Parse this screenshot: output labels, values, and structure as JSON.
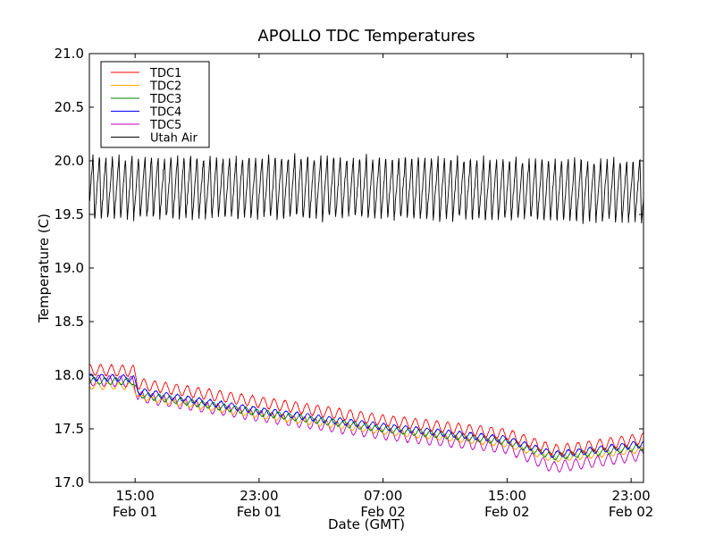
{
  "chart_data": {
    "type": "line",
    "title": "APOLLO TDC Temperatures",
    "xlabel": "Date (GMT)",
    "ylabel": "Temperature (C)",
    "xlim_hours_from_feb01_00": [
      12.05,
      47.8
    ],
    "ylim": [
      17.0,
      21.0
    ],
    "yticks": [
      17.0,
      17.5,
      18.0,
      18.5,
      19.0,
      19.5,
      20.0,
      20.5,
      21.0
    ],
    "ytick_labels": [
      "17.0",
      "17.5",
      "18.0",
      "18.5",
      "19.0",
      "19.5",
      "20.0",
      "20.5",
      "21.0"
    ],
    "xticks": [
      {
        "hours": 15,
        "time": "15:00",
        "date": "Feb 01"
      },
      {
        "hours": 23,
        "time": "23:00",
        "date": "Feb 01"
      },
      {
        "hours": 31,
        "time": "07:00",
        "date": "Feb 02"
      },
      {
        "hours": 39,
        "time": "15:00",
        "date": "Feb 02"
      },
      {
        "hours": 47,
        "time": "23:00",
        "date": "Feb 02"
      }
    ],
    "grid": false,
    "legend_position": "top-left",
    "series": [
      {
        "name": "TDC1",
        "color": "#ff0000",
        "trend": [
          [
            12.05,
            18.05
          ],
          [
            14.9,
            18.04
          ],
          [
            15.2,
            17.92
          ],
          [
            23,
            17.75
          ],
          [
            31,
            17.58
          ],
          [
            39,
            17.45
          ],
          [
            42,
            17.3
          ],
          [
            44,
            17.33
          ],
          [
            47.8,
            17.41
          ]
        ],
        "amplitude_C": 0.05,
        "period_hours": 0.7
      },
      {
        "name": "TDC2",
        "color": "#ffa500",
        "trend": [
          [
            12.05,
            17.9
          ],
          [
            14.9,
            17.9
          ],
          [
            15.2,
            17.8
          ],
          [
            23,
            17.63
          ],
          [
            31,
            17.48
          ],
          [
            39,
            17.36
          ],
          [
            42,
            17.22
          ],
          [
            44,
            17.25
          ],
          [
            47.8,
            17.31
          ]
        ],
        "amplitude_C": 0.03,
        "period_hours": 0.7
      },
      {
        "name": "TDC3",
        "color": "#008000",
        "trend": [
          [
            12.05,
            17.95
          ],
          [
            14.9,
            17.94
          ],
          [
            15.2,
            17.82
          ],
          [
            23,
            17.65
          ],
          [
            31,
            17.5
          ],
          [
            39,
            17.38
          ],
          [
            42,
            17.24
          ],
          [
            44,
            17.27
          ],
          [
            47.8,
            17.33
          ]
        ],
        "amplitude_C": 0.03,
        "period_hours": 0.7
      },
      {
        "name": "TDC4",
        "color": "#0000ff",
        "trend": [
          [
            12.05,
            17.98
          ],
          [
            14.9,
            17.97
          ],
          [
            15.2,
            17.85
          ],
          [
            23,
            17.67
          ],
          [
            31,
            17.52
          ],
          [
            39,
            17.4
          ],
          [
            42,
            17.26
          ],
          [
            44,
            17.29
          ],
          [
            47.8,
            17.36
          ]
        ],
        "amplitude_C": 0.03,
        "period_hours": 0.7
      },
      {
        "name": "TDC5",
        "color": "#bf00bf",
        "trend": [
          [
            12.05,
            17.95
          ],
          [
            14.9,
            17.94
          ],
          [
            15.2,
            17.8
          ],
          [
            23,
            17.62
          ],
          [
            31,
            17.45
          ],
          [
            39,
            17.32
          ],
          [
            42,
            17.14
          ],
          [
            44,
            17.18
          ],
          [
            47.8,
            17.26
          ]
        ],
        "amplitude_C": 0.05,
        "period_hours": 0.7
      },
      {
        "name": "Utah Air",
        "color": "#000000",
        "trend": [
          [
            12.05,
            19.75
          ],
          [
            30,
            19.75
          ],
          [
            47.8,
            19.72
          ]
        ],
        "amplitude_C": 0.3,
        "period_hours": 0.42
      }
    ]
  }
}
